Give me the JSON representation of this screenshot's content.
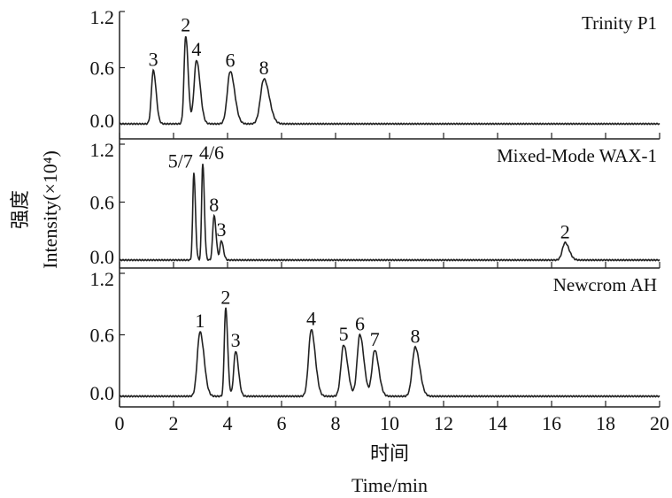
{
  "chart_data": {
    "type": "line",
    "xlabel_cn": "时间",
    "xlabel": "Time/min",
    "ylabel_cn": "强度",
    "ylabel": "Intensity(×10⁴)",
    "xlim": [
      0,
      20
    ],
    "ylim": [
      0.0,
      1.2
    ],
    "x_ticks": [
      "0",
      "2",
      "4",
      "6",
      "8",
      "10",
      "12",
      "14",
      "16",
      "18",
      "20"
    ],
    "y_ticks": [
      "0.0",
      "0.6",
      "1.2"
    ],
    "color": "#222222",
    "panels": [
      {
        "name": "Trinity P1",
        "peaks": [
          {
            "label": "3",
            "t": 1.25,
            "h": 0.57,
            "w": 0.07
          },
          {
            "label": "2",
            "t": 2.45,
            "h": 0.94,
            "w": 0.06
          },
          {
            "label": "4",
            "t": 2.85,
            "h": 0.68,
            "w": 0.09
          },
          {
            "label": "6",
            "t": 4.1,
            "h": 0.56,
            "w": 0.11
          },
          {
            "label": "8",
            "t": 5.35,
            "h": 0.48,
            "w": 0.13
          }
        ]
      },
      {
        "name": "Mixed-Mode WAX-1",
        "peaks": [
          {
            "label": "5/7",
            "t": 2.75,
            "h": 0.91,
            "w": 0.04
          },
          {
            "label": "4/6",
            "t": 3.08,
            "h": 1.0,
            "w": 0.04
          },
          {
            "label": "8",
            "t": 3.5,
            "h": 0.46,
            "w": 0.05
          },
          {
            "label": "3",
            "t": 3.77,
            "h": 0.2,
            "w": 0.05
          },
          {
            "label": "2",
            "t": 16.5,
            "h": 0.18,
            "w": 0.1
          }
        ]
      },
      {
        "name": "Newcrom AH",
        "peaks": [
          {
            "label": "1",
            "t": 2.98,
            "h": 0.63,
            "w": 0.1
          },
          {
            "label": "2",
            "t": 3.93,
            "h": 0.86,
            "w": 0.05
          },
          {
            "label": "3",
            "t": 4.3,
            "h": 0.44,
            "w": 0.07
          },
          {
            "label": "4",
            "t": 7.1,
            "h": 0.65,
            "w": 0.1
          },
          {
            "label": "5",
            "t": 8.3,
            "h": 0.5,
            "w": 0.1
          },
          {
            "label": "6",
            "t": 8.9,
            "h": 0.6,
            "w": 0.1
          },
          {
            "label": "7",
            "t": 9.45,
            "h": 0.45,
            "w": 0.1
          },
          {
            "label": "8",
            "t": 10.95,
            "h": 0.48,
            "w": 0.11
          }
        ]
      }
    ]
  }
}
